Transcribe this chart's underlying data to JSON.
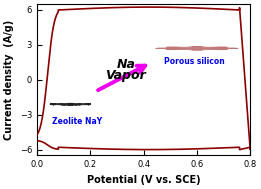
{
  "xlabel": "Potential (V vs. SCE)",
  "ylabel": "Current density  (A/g)",
  "xlim": [
    0.0,
    0.8
  ],
  "ylim": [
    -6.5,
    6.5
  ],
  "xticks": [
    0.0,
    0.2,
    0.4,
    0.6,
    0.8
  ],
  "yticks": [
    -6,
    -3,
    0,
    3,
    6
  ],
  "curve_color": "#8B0000",
  "curve_linewidth": 1.2,
  "background_color": "#ffffff",
  "na_text": "Na",
  "vapor_text": "Vapor",
  "label_zeolite": "Zeolite NaY",
  "label_porous": "Porous silicon",
  "label_color": "#0000EE",
  "arrow_color": "#EE00EE",
  "axis_label_fontsize": 7,
  "tick_fontsize": 6
}
